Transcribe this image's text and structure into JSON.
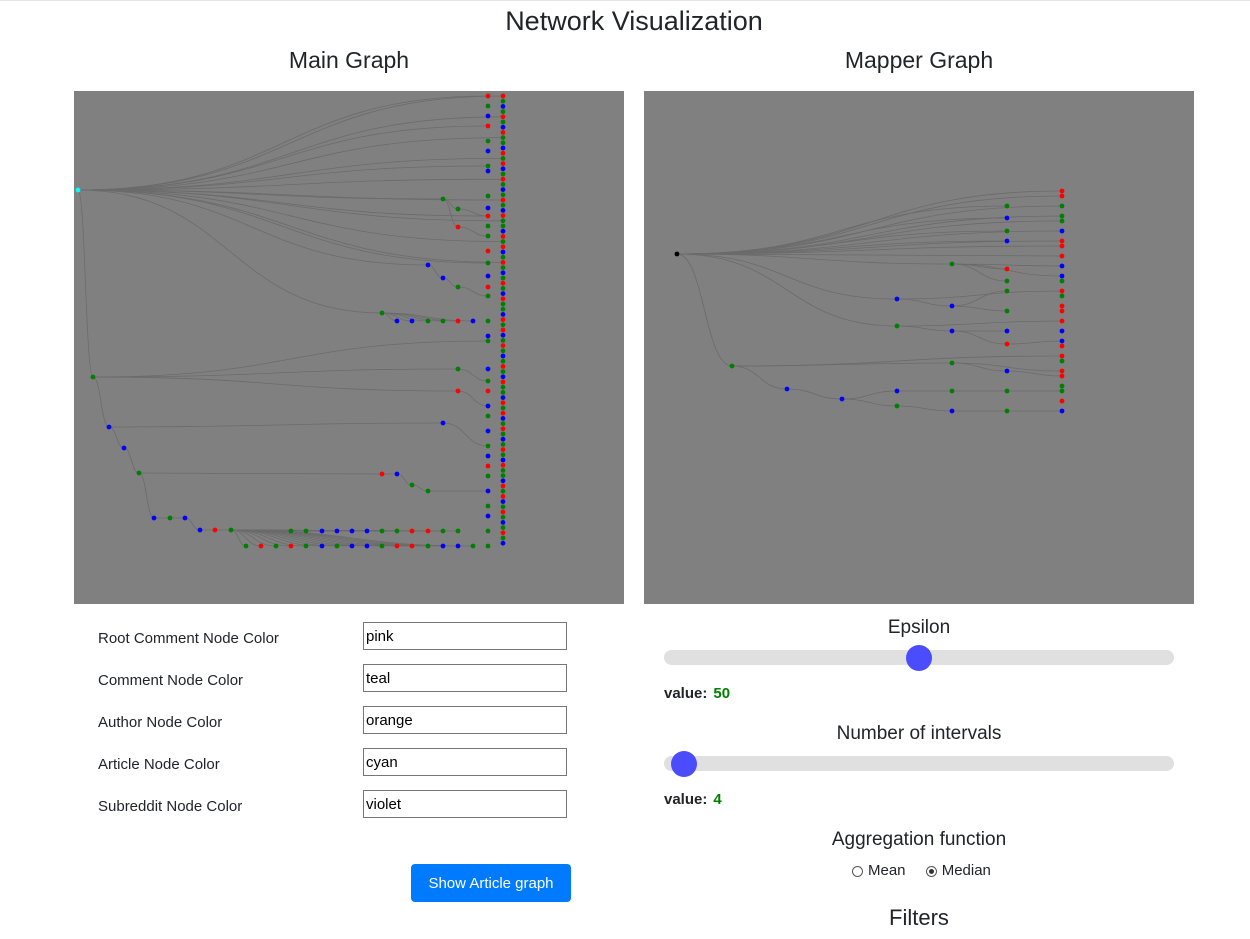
{
  "page": {
    "title": "Network Visualization"
  },
  "main_graph": {
    "title": "Main Graph"
  },
  "mapper_graph": {
    "title": "Mapper Graph"
  },
  "colors": {
    "panel_background": "#808080",
    "node_red": "#ff0000",
    "node_green": "#008000",
    "node_blue": "#0000ff",
    "node_cyan": "#00ffff",
    "node_black": "#000000",
    "edge": "#6b6b6b",
    "accent": "#007bff",
    "slider_thumb": "#4c4cff",
    "value_green": "#008000"
  },
  "color_settings": [
    {
      "label": "Root Comment Node Color",
      "value": "pink"
    },
    {
      "label": "Comment Node Color",
      "value": "teal"
    },
    {
      "label": "Author Node Color",
      "value": "orange"
    },
    {
      "label": "Article Node Color",
      "value": "cyan"
    },
    {
      "label": "Subreddit Node Color",
      "value": "violet"
    }
  ],
  "show_article_button": {
    "label": "Show Article graph"
  },
  "epsilon": {
    "label": "Epsilon",
    "value_label": "value:",
    "value": "50",
    "fraction": 0.5
  },
  "intervals": {
    "label": "Number of intervals",
    "value_label": "value:",
    "value": "4",
    "fraction": 0.04
  },
  "aggregation": {
    "label": "Aggregation function",
    "options": [
      "Mean",
      "Median"
    ],
    "selected": "Median"
  },
  "filters": {
    "label": "Filters"
  }
}
